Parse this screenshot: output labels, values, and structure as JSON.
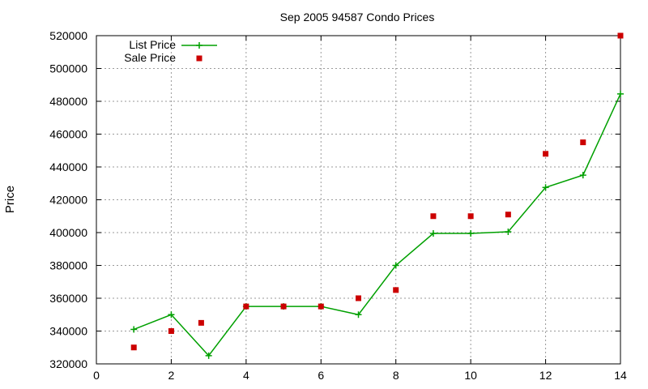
{
  "chart_data": {
    "type": "line",
    "title": "Sep 2005 94587 Condo Prices",
    "xlabel": "",
    "ylabel": "Price",
    "xlim": [
      0,
      14
    ],
    "ylim": [
      320000,
      520000
    ],
    "xticks": [
      "0",
      "2",
      "4",
      "6",
      "8",
      "10",
      "12",
      "14"
    ],
    "yticks": [
      "320000",
      "340000",
      "360000",
      "380000",
      "400000",
      "420000",
      "440000",
      "460000",
      "480000",
      "500000",
      "520000"
    ],
    "grid": true,
    "legend_position": "top-left",
    "series": [
      {
        "name": "List Price",
        "style": "line-with-plus-markers",
        "color": "#00a000",
        "x": [
          1,
          2,
          3,
          4,
          5,
          6,
          7,
          8,
          9,
          10,
          11,
          12,
          13,
          14
        ],
        "y": [
          341000,
          350000,
          325000,
          355000,
          355000,
          355000,
          350000,
          380000,
          399500,
          399500,
          400500,
          427500,
          435000,
          484500
        ]
      },
      {
        "name": "Sale Price",
        "style": "square-markers",
        "color": "#cc0000",
        "x": [
          1,
          2,
          2.8,
          4,
          5,
          6,
          7,
          8,
          9,
          10,
          11,
          12,
          13,
          14
        ],
        "y": [
          330000,
          340000,
          345000,
          355000,
          355000,
          355000,
          360000,
          365000,
          410000,
          410000,
          411000,
          448000,
          455000,
          520000
        ]
      }
    ]
  }
}
